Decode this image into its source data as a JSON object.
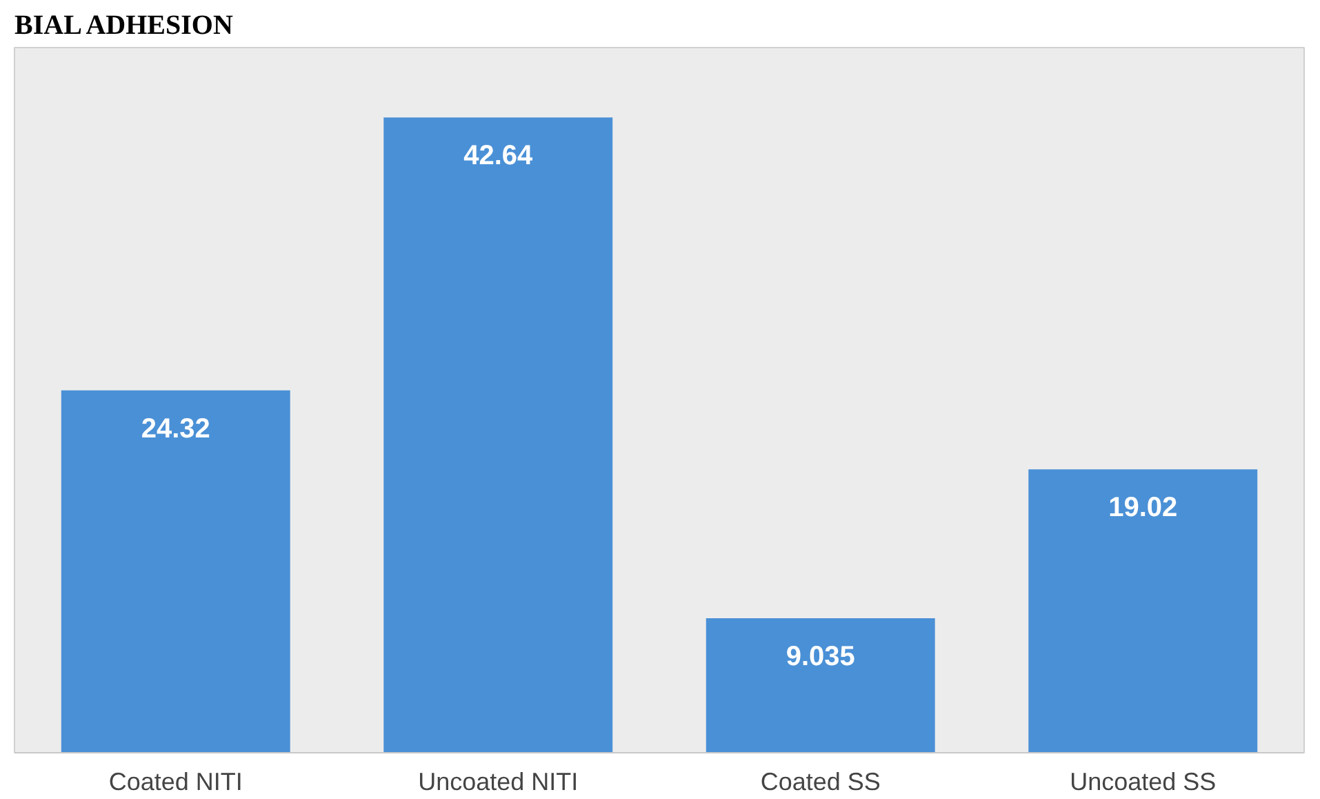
{
  "chart_data": {
    "type": "bar",
    "title": "BIAL ADHESION",
    "categories": [
      "Coated NITI",
      "Uncoated NITI",
      "Coated SS",
      "Uncoated SS"
    ],
    "values": [
      24.32,
      42.64,
      9.035,
      19.02
    ],
    "color": "#4a90d6",
    "data_labels": true,
    "grid": false
  }
}
